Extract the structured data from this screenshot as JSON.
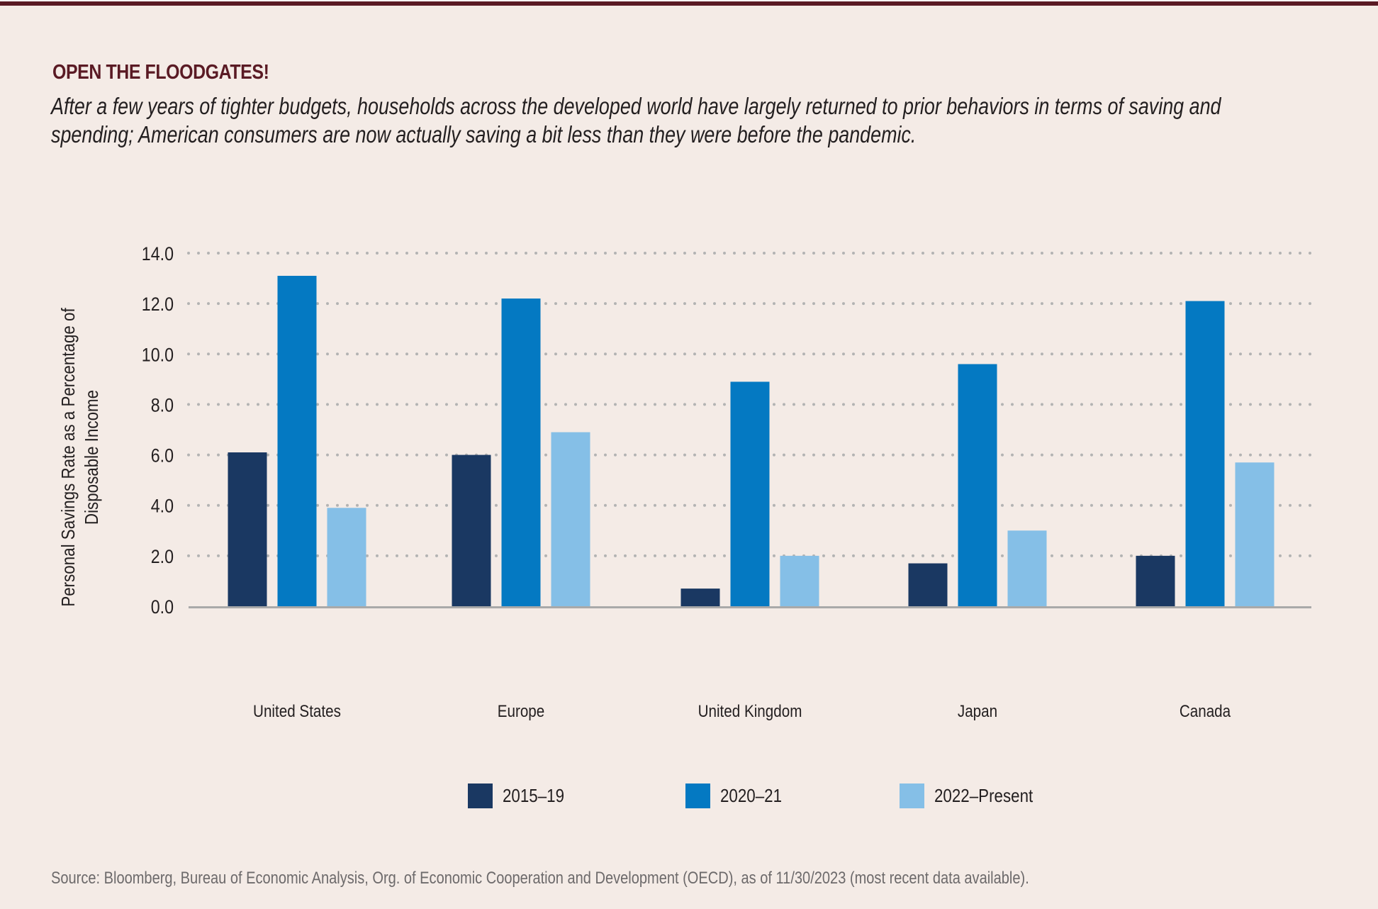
{
  "header": {
    "title": "OPEN THE FLOODGATES!",
    "subtitle_lines": [
      "After a few years of tighter budgets, households across the developed world have largely returned to prior behaviors in terms of saving and",
      "spending; American consumers are now actually saving a bit less than they were before the pandemic."
    ]
  },
  "colors": {
    "accent": "#5a1a24",
    "series_2015_19": "#1a3862",
    "series_2020_21": "#0479c2",
    "series_2022_present": "#85bfe7",
    "gridline": "#b3b3b3",
    "background": "#f4ebe6"
  },
  "chart_data": {
    "type": "bar",
    "title": "OPEN THE FLOODGATES!",
    "xlabel": "",
    "ylabel": "Personal Savings Rate as a Percentage of Disposable Income",
    "ylim": [
      0,
      14
    ],
    "yticks": [
      "0.0",
      "2.0",
      "4.0",
      "6.0",
      "8.0",
      "10.0",
      "12.0",
      "14.0"
    ],
    "grid": "horizontal-dotted",
    "legend_position": "bottom",
    "categories": [
      "United States",
      "Europe",
      "United Kingdom",
      "Japan",
      "Canada"
    ],
    "series": [
      {
        "name": "2015–19",
        "color": "#1a3862",
        "values": [
          6.1,
          6.0,
          0.7,
          1.7,
          2.0
        ]
      },
      {
        "name": "2020–21",
        "color": "#0479c2",
        "values": [
          13.1,
          12.2,
          8.9,
          9.6,
          12.1
        ]
      },
      {
        "name": "2022–Present",
        "color": "#85bfe7",
        "values": [
          3.9,
          6.9,
          2.0,
          3.0,
          5.7
        ]
      }
    ]
  },
  "footer": {
    "source": "Source: Bloomberg, Bureau of Economic Analysis, Org. of Economic Cooperation and Development (OECD), as of 11/30/2023 (most recent data available)."
  }
}
